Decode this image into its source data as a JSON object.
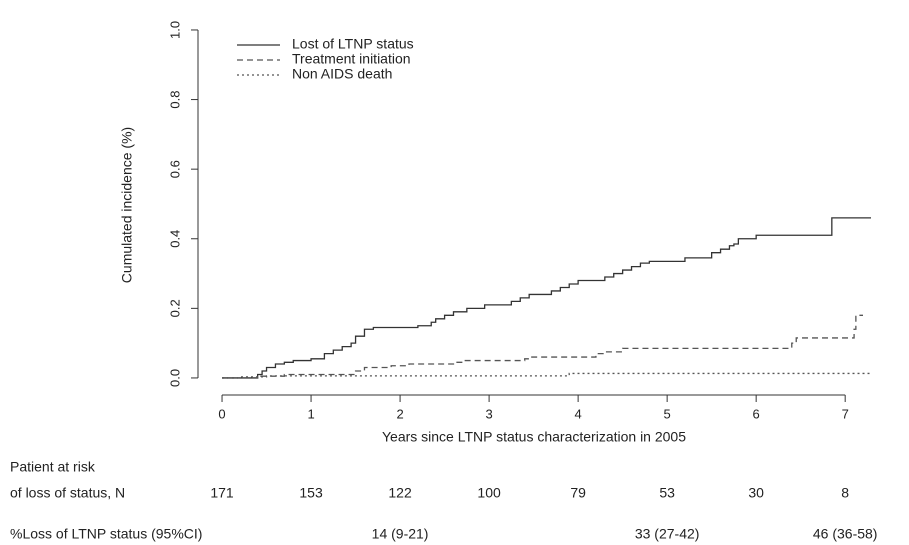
{
  "chart_data": {
    "type": "step",
    "x_label": "Years since LTNP status characterization in 2005",
    "y_label": "Cumulated incidence (%)",
    "xlim": [
      -0.27,
      7.29
    ],
    "ylim": [
      -0.049,
      1.043
    ],
    "xticks": [
      0,
      1,
      2,
      3,
      4,
      5,
      6,
      7
    ],
    "yticks": [
      {
        "value": 0,
        "label": "0.0"
      },
      0.2,
      0.4,
      0.6,
      0.8,
      {
        "value": 1,
        "label": "1.0"
      }
    ],
    "legend": "topleft",
    "series": [
      {
        "name": "Lost of LTNP status",
        "color": "#333333",
        "dash": "solid",
        "x": [
          0,
          0.4,
          0.45,
          0.5,
          0.6,
          0.7,
          0.8,
          1.0,
          1.15,
          1.25,
          1.35,
          1.45,
          1.5,
          1.6,
          1.7,
          2.2,
          2.35,
          2.4,
          2.5,
          2.6,
          2.75,
          2.95,
          3.25,
          3.35,
          3.45,
          3.7,
          3.8,
          3.9,
          4.0,
          4.3,
          4.4,
          4.5,
          4.6,
          4.7,
          4.8,
          5.2,
          5.5,
          5.6,
          5.7,
          5.75,
          5.8,
          6.0,
          6.85,
          7.29
        ],
        "values": [
          0,
          0.01,
          0.02,
          0.03,
          0.04,
          0.045,
          0.05,
          0.055,
          0.07,
          0.08,
          0.09,
          0.1,
          0.12,
          0.14,
          0.145,
          0.15,
          0.16,
          0.17,
          0.18,
          0.19,
          0.2,
          0.21,
          0.22,
          0.23,
          0.24,
          0.25,
          0.26,
          0.27,
          0.28,
          0.29,
          0.3,
          0.31,
          0.32,
          0.33,
          0.335,
          0.345,
          0.36,
          0.37,
          0.38,
          0.385,
          0.4,
          0.41,
          0.46,
          0.46
        ]
      },
      {
        "name": "Treatment initiation",
        "color": "#555555",
        "dash": "dashed",
        "x": [
          0,
          0.4,
          0.7,
          1.5,
          1.6,
          1.9,
          2.1,
          2.6,
          2.7,
          3.4,
          3.45,
          4.2,
          4.3,
          4.5,
          6.4,
          6.45,
          7.1,
          7.12,
          7.2
        ],
        "values": [
          0,
          0.005,
          0.01,
          0.02,
          0.03,
          0.035,
          0.04,
          0.045,
          0.05,
          0.055,
          0.06,
          0.07,
          0.075,
          0.085,
          0.1,
          0.115,
          0.14,
          0.18,
          0.18
        ]
      },
      {
        "name": "Non AIDS death",
        "color": "#555555",
        "dash": "dotted",
        "x": [
          0,
          0.2,
          0.5,
          3.9,
          7.29
        ],
        "values": [
          0,
          0.003,
          0.006,
          0.013,
          0.013
        ]
      }
    ],
    "at_risk": {
      "label": [
        "Patient at risk",
        "of loss of status, N"
      ],
      "values": [
        171,
        153,
        122,
        100,
        79,
        53,
        30,
        8
      ]
    },
    "loss_row": {
      "label": "%Loss of LTNP status  (95%CI)",
      "texts": [
        null,
        null,
        "14 (9-21)",
        null,
        null,
        "33 (27-42)",
        null,
        "46 (36-58)"
      ]
    }
  }
}
